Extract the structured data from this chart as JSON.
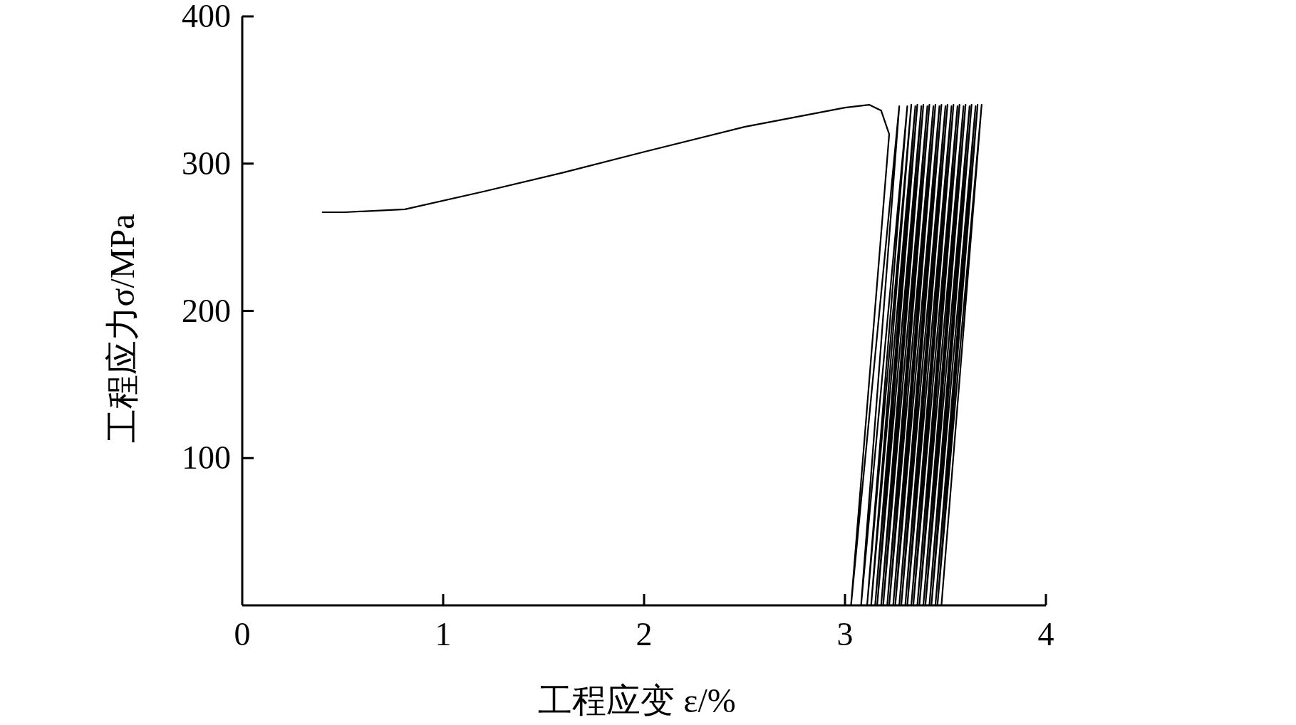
{
  "chart_data": {
    "type": "line",
    "xlabel": "工程应变 ε/%",
    "ylabel": "工程应力σ/MPa",
    "xlim": [
      0,
      4
    ],
    "ylim": [
      0,
      400
    ],
    "xticks": [
      0,
      1,
      2,
      3,
      4
    ],
    "yticks": [
      100,
      200,
      300,
      400
    ],
    "series": [
      {
        "color": "#000000",
        "x": [
          0.4,
          0.51,
          0.81,
          1.2,
          1.6,
          2.0,
          2.5,
          3.0,
          3.12,
          3.18,
          3.22,
          3.03,
          3.27,
          3.08,
          3.31,
          3.11,
          3.33,
          3.13,
          3.35,
          3.15,
          3.36,
          3.16,
          3.38,
          3.18,
          3.39,
          3.19,
          3.41,
          3.21,
          3.42,
          3.22,
          3.44,
          3.24,
          3.45,
          3.25,
          3.47,
          3.27,
          3.48,
          3.28,
          3.5,
          3.3,
          3.51,
          3.31,
          3.53,
          3.33,
          3.54,
          3.34,
          3.56,
          3.36,
          3.57,
          3.37,
          3.59,
          3.39,
          3.6,
          3.4,
          3.62,
          3.42,
          3.63,
          3.43,
          3.65,
          3.45,
          3.66,
          3.46,
          3.68,
          3.48
        ],
        "values": [
          267,
          267,
          269,
          281,
          294,
          308,
          325,
          338,
          340,
          336,
          320,
          0,
          339,
          0,
          339,
          0,
          340,
          0,
          339,
          0,
          340,
          0,
          339,
          0,
          340,
          0,
          339,
          0,
          340,
          0,
          339,
          0,
          340,
          0,
          339,
          0,
          340,
          0,
          339,
          0,
          340,
          0,
          339,
          0,
          340,
          0,
          339,
          0,
          340,
          0,
          339,
          0,
          340,
          0,
          339,
          0,
          340,
          0,
          339,
          0,
          340,
          0,
          340,
          0
        ]
      }
    ]
  }
}
